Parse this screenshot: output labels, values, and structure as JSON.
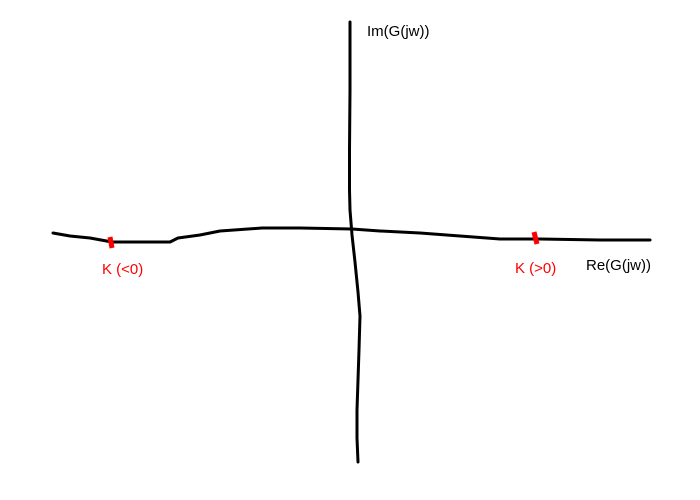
{
  "axes": {
    "imaginary_label": "Im(G(jw))",
    "real_label": "Re(G(jw))"
  },
  "markers": {
    "negative_k_label": "K (<0)",
    "positive_k_label": "K (>0)"
  },
  "colors": {
    "axis": "#000000",
    "axis_label": "#000000",
    "marker": "#ff0000",
    "marker_label": "#ff0000",
    "background": "#ffffff"
  }
}
